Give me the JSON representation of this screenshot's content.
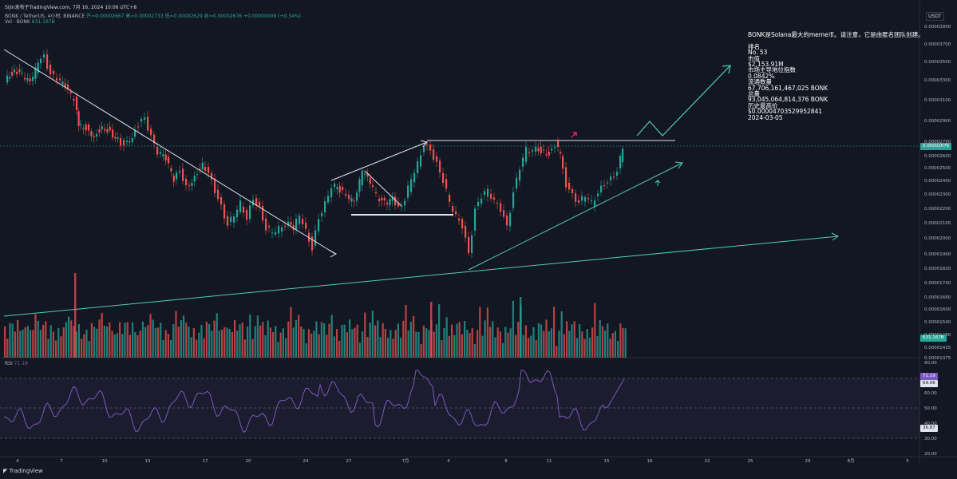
{
  "header": {
    "published_line": "Sijin发布于TradingView.com, 7月 16, 2024 10:06 UTC+8",
    "symbol": "BONK / TetherUS, 4小时, BINANCE",
    "ohlc": "开=0.00002667 高=0.00002733 低=0.00002629 收=0.00002676 +0.00000009 (+0.34%)",
    "volume_label": "Vol · BONK",
    "volume_value": "631.167B"
  },
  "currency_button": "USDT",
  "info_panel": {
    "lines": [
      "BONK是Solana最大的meme币。请注意，它是由匿名团队创建。",
      "",
      "排名",
      "No. 53",
      "市值",
      "$2,153.91M",
      "市场主导地位指数",
      "0.0842%",
      "流通数量",
      "67,706,161,467,025 BONK",
      "总量",
      "93,045,064,814,376 BONK",
      "历史最高价",
      "$0.000047035299528​41",
      "2024-03-05"
    ]
  },
  "price_axis": {
    "ticks": [
      "0.00003900",
      "0.00003700",
      "0.00003500",
      "0.00003300",
      "0.00003100",
      "0.00002900",
      "0.00002700",
      "0.00002600",
      "0.00002500",
      "0.00002400",
      "0.00002300",
      "0.00002200",
      "0.00002100",
      "0.00002000",
      "0.00001900",
      "0.00001820",
      "0.00001740",
      "0.00001660",
      "0.00001600",
      "0.00001540",
      "0.00001480",
      "0.00001425",
      "0.00001375"
    ],
    "current_price": "0.00002676",
    "volume_tag": "631.167B"
  },
  "rsi": {
    "label": "RSI",
    "value": "71.19",
    "ticks": [
      "80.00",
      "70.00",
      "60.00",
      "50.00",
      "40.00",
      "30.00",
      "20.00"
    ],
    "tag_current": "71.19",
    "tag_ma": "69.06",
    "tag_low": "36.87"
  },
  "time_axis": {
    "ticks": [
      "4",
      "7",
      "10",
      "13",
      "17",
      "20",
      "24",
      "27",
      "7月",
      "4",
      "8",
      "11",
      "15",
      "18",
      "22",
      "25",
      "29",
      "8月",
      "5"
    ]
  },
  "colors": {
    "background": "#131722",
    "up": "#26a69a",
    "down": "#ef5350",
    "trendline": "#4dd0b1",
    "rsi": "#7e57c2",
    "white_line": "#e0e3eb"
  },
  "branding": "TradingView"
}
